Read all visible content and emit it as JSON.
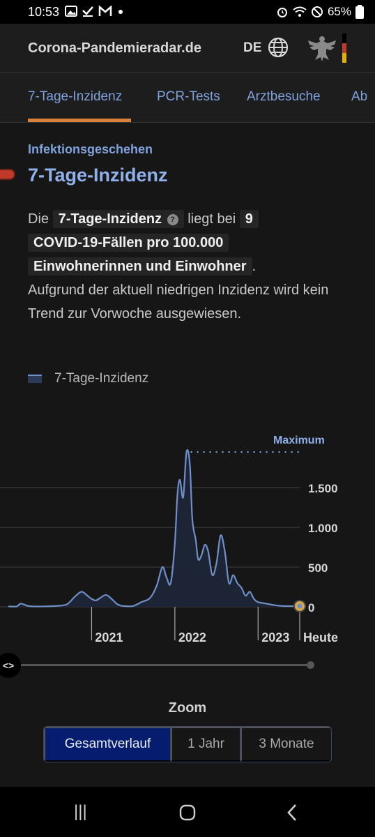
{
  "status_bar": {
    "time": "10:53",
    "battery": "65%",
    "left_icons": [
      "gallery-icon",
      "check-icon",
      "gmail-icon",
      "dot-icon"
    ],
    "right_icons": [
      "alarm-icon",
      "wifi-icon",
      "dnd-icon",
      "battery-icon"
    ]
  },
  "header": {
    "site_title": "Corona-Pandemieradar.de",
    "language": "DE"
  },
  "tabs": [
    {
      "label": "7-Tage-Inzidenz",
      "active": true
    },
    {
      "label": "PCR-Tests"
    },
    {
      "label": "Arztbesuche"
    },
    {
      "label": "Ab"
    }
  ],
  "section": {
    "kicker": "Infektionsgeschehen",
    "title": "7-Tage-Inzidenz"
  },
  "paragraph": {
    "p1": "Die",
    "chip1": "7-Tage-Inzidenz",
    "p2": "liegt bei",
    "chip2": "9",
    "chip3": "COVID-19-Fällen pro 100.000",
    "chip4": "Einwohnerinnen und Einwohner",
    "p3": ".",
    "p4": "Aufgrund der aktuell niedrigen Inzidenz wird kein Trend zur Vorwoche ausgewiesen."
  },
  "legend": {
    "label": "7-Tage-Inzidenz"
  },
  "chart_data": {
    "type": "area",
    "series": [
      {
        "name": "7-Tage-Inzidenz",
        "color": "#6f8fc8"
      }
    ],
    "x": [
      2020.0,
      2020.1,
      2020.15,
      2020.25,
      2020.4,
      2020.55,
      2020.7,
      2020.8,
      2020.88,
      2020.95,
      2021.0,
      2021.05,
      2021.1,
      2021.17,
      2021.23,
      2021.3,
      2021.35,
      2021.42,
      2021.5,
      2021.6,
      2021.7,
      2021.78,
      2021.85,
      2021.9,
      2021.95,
      2022.0,
      2022.03,
      2022.06,
      2022.1,
      2022.14,
      2022.18,
      2022.21,
      2022.25,
      2022.28,
      2022.32,
      2022.36,
      2022.4,
      2022.45,
      2022.5,
      2022.55,
      2022.6,
      2022.65,
      2022.7,
      2022.75,
      2022.8,
      2022.85,
      2022.9,
      2022.95,
      2023.0,
      2023.1,
      2023.2,
      2023.3,
      2023.4,
      2023.5
    ],
    "y": [
      5,
      5,
      40,
      8,
      5,
      10,
      30,
      130,
      190,
      140,
      100,
      80,
      110,
      150,
      110,
      40,
      15,
      8,
      10,
      60,
      110,
      260,
      500,
      370,
      300,
      800,
      1400,
      1600,
      1380,
      1950,
      1800,
      1100,
      850,
      600,
      650,
      780,
      700,
      400,
      550,
      900,
      700,
      300,
      400,
      300,
      240,
      140,
      190,
      100,
      60,
      40,
      20,
      10,
      9,
      9
    ],
    "x_ticks": [
      {
        "value": 2021,
        "label": "2021"
      },
      {
        "value": 2022,
        "label": "2022"
      },
      {
        "value": 2023,
        "label": "2023"
      },
      {
        "value": 2023.5,
        "label": "Heute"
      }
    ],
    "y_ticks": [
      {
        "value": 0,
        "label": "0"
      },
      {
        "value": 500,
        "label": "500"
      },
      {
        "value": 1000,
        "label": "1.000"
      },
      {
        "value": 1500,
        "label": "1.500"
      }
    ],
    "ylim": [
      0,
      1950
    ],
    "xlim": [
      2020.0,
      2023.5
    ],
    "annotation": {
      "label": "Maximum",
      "y": 1950
    },
    "current_value": 9
  },
  "zoom": {
    "label": "Zoom",
    "options": [
      {
        "label": "Gesamtverlauf",
        "active": true
      },
      {
        "label": "1 Jahr"
      },
      {
        "label": "3 Monate"
      }
    ]
  },
  "navbar": {
    "recent": "|||",
    "home": "○",
    "back": "‹"
  }
}
